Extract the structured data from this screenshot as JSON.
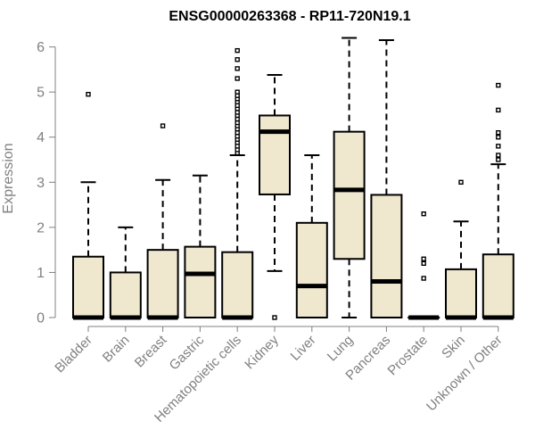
{
  "chart_data": {
    "type": "boxplot",
    "title": "ENSG00000263368 - RP11-720N19.1",
    "xlabel": "",
    "ylabel": "Expression",
    "ylim": [
      0,
      6.2
    ],
    "yticks": [
      0,
      1,
      2,
      3,
      4,
      5,
      6
    ],
    "box_fill": "#efe8cf",
    "categories": [
      "Bladder",
      "Brain",
      "Breast",
      "Gastric",
      "Hematopoietic cells",
      "Kidney",
      "Liver",
      "Lung",
      "Pancreas",
      "Prostate",
      "Skin",
      "Unknown / Other"
    ],
    "boxes": [
      {
        "q1": 0,
        "median": 0,
        "q3": 1.35,
        "wlow": 0,
        "whigh": 3.0,
        "outliers": [
          4.95
        ]
      },
      {
        "q1": 0,
        "median": 0,
        "q3": 1.0,
        "wlow": 0,
        "whigh": 2.0,
        "outliers": []
      },
      {
        "q1": 0,
        "median": 0,
        "q3": 1.5,
        "wlow": 0,
        "whigh": 3.05,
        "outliers": [
          4.25
        ]
      },
      {
        "q1": 0,
        "median": 0.97,
        "q3": 1.57,
        "wlow": 0,
        "whigh": 3.15,
        "outliers": []
      },
      {
        "q1": 0,
        "median": 0,
        "q3": 1.45,
        "wlow": 0,
        "whigh": 3.6,
        "outliers": [
          3.65,
          3.72,
          3.8,
          3.88,
          3.95,
          4.02,
          4.1,
          4.18,
          4.25,
          4.32,
          4.4,
          4.48,
          4.55,
          4.63,
          4.7,
          4.78,
          4.85,
          4.92,
          5.0,
          5.3,
          5.52,
          5.72,
          5.92
        ]
      },
      {
        "q1": 2.73,
        "median": 4.12,
        "q3": 4.48,
        "wlow": 1.03,
        "whigh": 5.38,
        "outliers": [
          0
        ]
      },
      {
        "q1": 0,
        "median": 0.7,
        "q3": 2.1,
        "wlow": 0,
        "whigh": 3.6,
        "outliers": []
      },
      {
        "q1": 1.3,
        "median": 2.83,
        "q3": 4.12,
        "wlow": 0,
        "whigh": 6.2,
        "outliers": []
      },
      {
        "q1": 0,
        "median": 0.8,
        "q3": 2.72,
        "wlow": 0,
        "whigh": 6.15,
        "outliers": []
      },
      {
        "q1": 0,
        "median": 0,
        "q3": 0,
        "wlow": 0,
        "whigh": 0,
        "outliers": [
          0.87,
          1.2,
          1.3,
          2.3
        ]
      },
      {
        "q1": 0,
        "median": 0,
        "q3": 1.07,
        "wlow": 0,
        "whigh": 2.13,
        "outliers": [
          3.0
        ]
      },
      {
        "q1": 0,
        "median": 0,
        "q3": 1.4,
        "wlow": 0,
        "whigh": 3.4,
        "outliers": [
          3.5,
          3.6,
          3.8,
          4.0,
          4.1,
          4.6,
          5.15
        ]
      }
    ]
  }
}
